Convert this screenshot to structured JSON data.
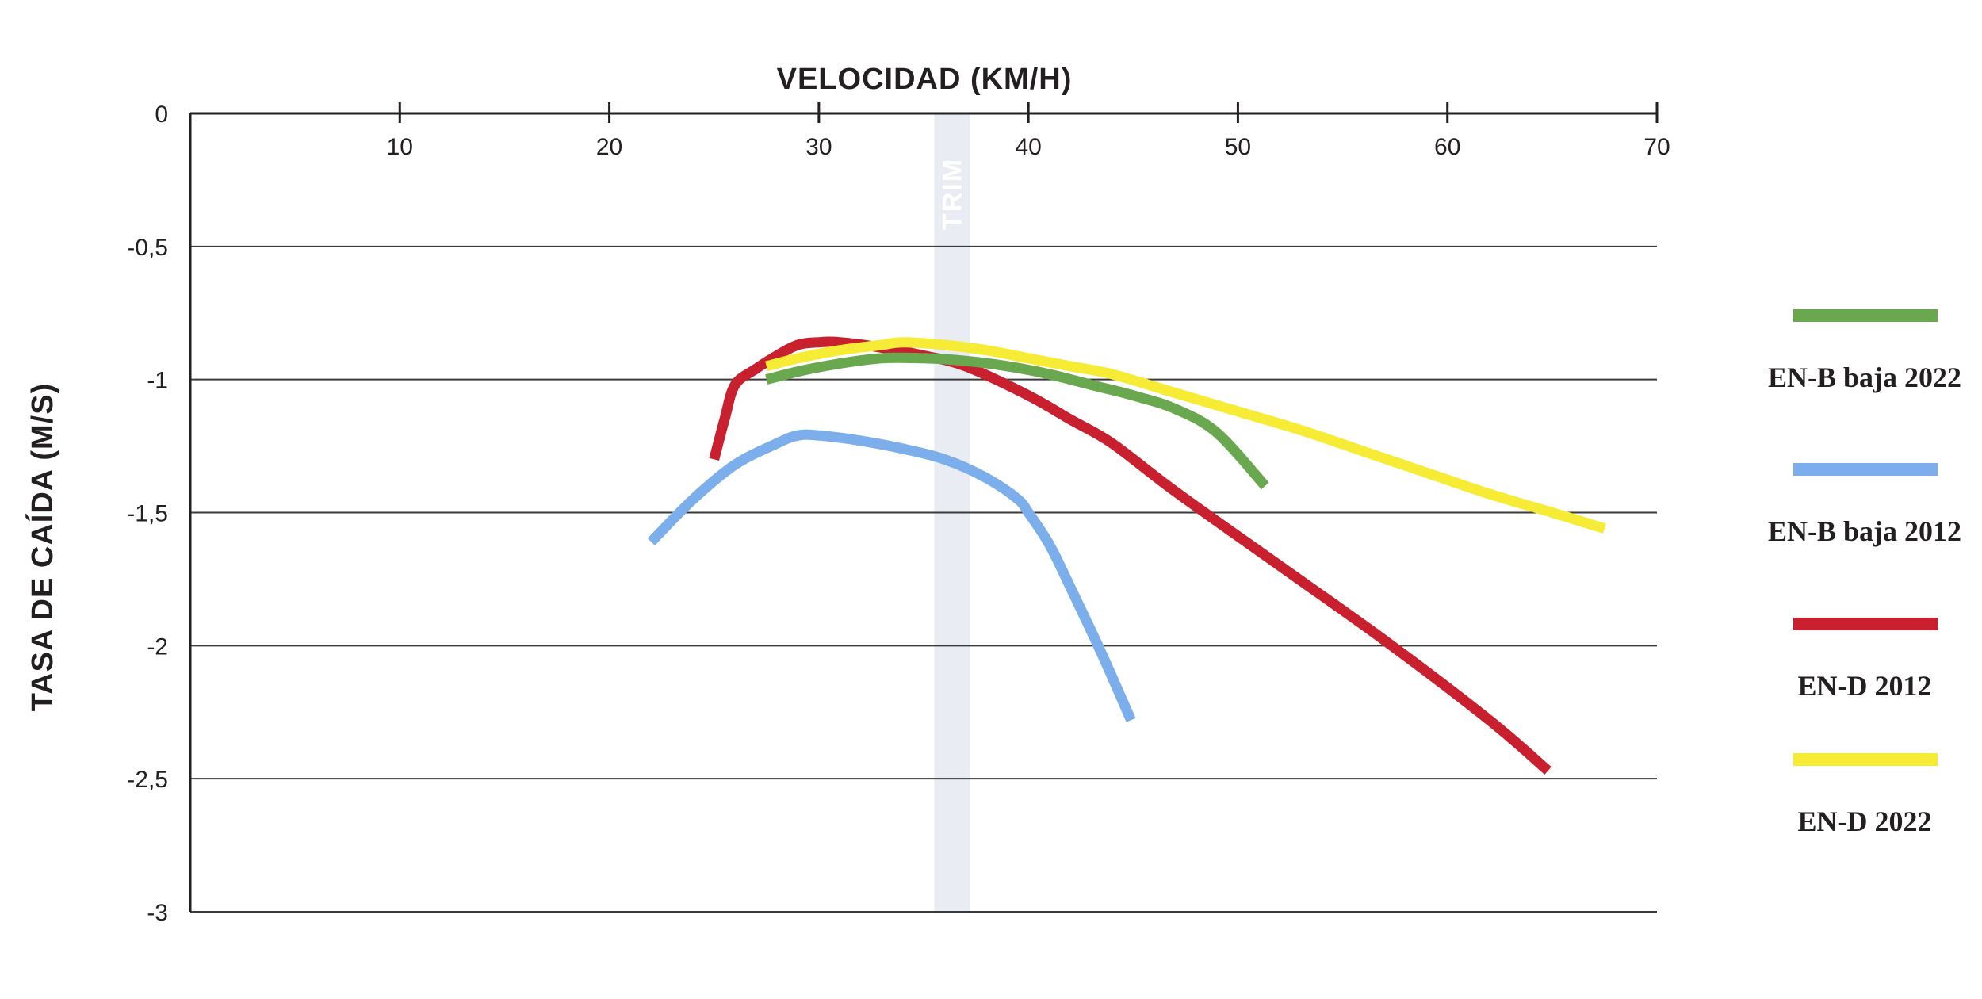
{
  "chart_data": {
    "type": "line",
    "xlabel": "VELOCIDAD (KM/H)",
    "ylabel": "TASA DE CAÍDA (M/S)",
    "xlim": [
      0,
      70
    ],
    "ylim": [
      -3,
      0
    ],
    "x_ticks": [
      10,
      20,
      30,
      40,
      50,
      60,
      70
    ],
    "x_tick_labels": [
      "10",
      "20",
      "30",
      "40",
      "50",
      "60",
      "70"
    ],
    "y_ticks": [
      0,
      -0.5,
      -1,
      -1.5,
      -2,
      -2.5,
      -3
    ],
    "y_tick_labels": [
      "0",
      "-0,5",
      "-1",
      "-1,5",
      "-2",
      "-2,5",
      "-3"
    ],
    "x_axis_position": "top",
    "grid": "horizontal",
    "legend_position": "right",
    "band": {
      "label": "TRIM",
      "x_range": [
        35.5,
        37.2
      ],
      "color": "#e9edf3"
    },
    "series": [
      {
        "name": "EN-B baja 2022",
        "color": "#6aa84f",
        "points": [
          [
            27.5,
            -1.0
          ],
          [
            29,
            -0.97
          ],
          [
            31,
            -0.94
          ],
          [
            33,
            -0.92
          ],
          [
            35,
            -0.92
          ],
          [
            37,
            -0.93
          ],
          [
            39,
            -0.95
          ],
          [
            41,
            -0.98
          ],
          [
            43,
            -1.02
          ],
          [
            45,
            -1.06
          ],
          [
            47,
            -1.11
          ],
          [
            49,
            -1.2
          ],
          [
            51.3,
            -1.4
          ]
        ]
      },
      {
        "name": "EN-B baja 2012",
        "color": "#7baeea",
        "points": [
          [
            22,
            -1.61
          ],
          [
            24,
            -1.45
          ],
          [
            26,
            -1.32
          ],
          [
            28,
            -1.24
          ],
          [
            29,
            -1.21
          ],
          [
            30,
            -1.21
          ],
          [
            32,
            -1.23
          ],
          [
            34,
            -1.26
          ],
          [
            36,
            -1.3
          ],
          [
            38,
            -1.37
          ],
          [
            39.5,
            -1.45
          ],
          [
            40,
            -1.5
          ],
          [
            41,
            -1.62
          ],
          [
            42,
            -1.78
          ],
          [
            43.5,
            -2.03
          ],
          [
            44.9,
            -2.28
          ]
        ]
      },
      {
        "name": "EN-D 2012",
        "color": "#c8202e",
        "points": [
          [
            25,
            -1.3
          ],
          [
            25.5,
            -1.15
          ],
          [
            26,
            -1.02
          ],
          [
            27,
            -0.96
          ],
          [
            28,
            -0.91
          ],
          [
            29,
            -0.87
          ],
          [
            30,
            -0.86
          ],
          [
            31,
            -0.86
          ],
          [
            33,
            -0.88
          ],
          [
            35,
            -0.91
          ],
          [
            37,
            -0.95
          ],
          [
            40,
            -1.06
          ],
          [
            42,
            -1.15
          ],
          [
            44,
            -1.24
          ],
          [
            47,
            -1.42
          ],
          [
            52,
            -1.7
          ],
          [
            57,
            -1.98
          ],
          [
            62,
            -2.28
          ],
          [
            64.8,
            -2.47
          ]
        ]
      },
      {
        "name": "EN-D 2022",
        "color": "#f6ec35",
        "points": [
          [
            27.5,
            -0.95
          ],
          [
            29,
            -0.92
          ],
          [
            31,
            -0.89
          ],
          [
            33,
            -0.87
          ],
          [
            34,
            -0.86
          ],
          [
            36,
            -0.87
          ],
          [
            38,
            -0.89
          ],
          [
            40,
            -0.92
          ],
          [
            42,
            -0.95
          ],
          [
            44,
            -0.98
          ],
          [
            47,
            -1.05
          ],
          [
            50,
            -1.12
          ],
          [
            53,
            -1.19
          ],
          [
            56,
            -1.27
          ],
          [
            59,
            -1.35
          ],
          [
            62,
            -1.43
          ],
          [
            65,
            -1.5
          ],
          [
            67.5,
            -1.56
          ]
        ]
      }
    ]
  }
}
